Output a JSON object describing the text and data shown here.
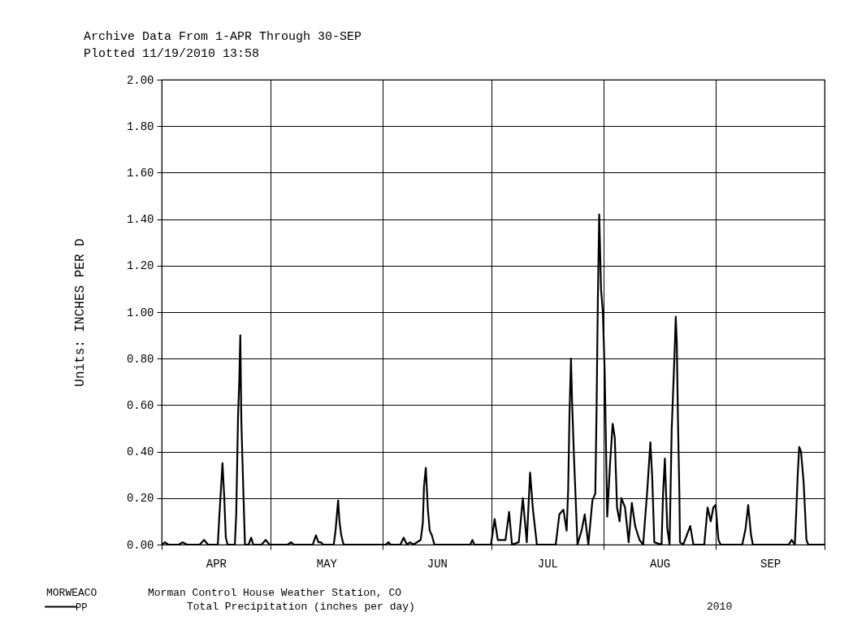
{
  "chart_data": {
    "type": "line",
    "title": "Archive Data From  1-APR Through 30-SEP",
    "subtitle": "Plotted 11/19/2010  13:58",
    "ylabel": "Units: INCHES PER D",
    "annotations": [
      "MORWEACO",
      "Morman Control House Weather Station, CO",
      "Total Precipitation (inches per day)",
      "2010"
    ],
    "x": [
      "2010-04-01T00:00",
      "2010-04-01T22:00",
      "2010-04-02T19:00",
      "2010-04-05T17:00",
      "2010-04-06T19:00",
      "2010-04-08T00:00",
      "2010-04-11T12:00",
      "2010-04-12T17:00",
      "2010-04-13T19:00",
      "2010-04-16T12:00",
      "2010-04-16T22:00",
      "2010-04-17T19:00",
      "2010-04-18T07:00",
      "2010-04-18T17:00",
      "2010-04-19T05:00",
      "2010-04-21T05:00",
      "2010-04-21T14:00",
      "2010-04-22T02:00",
      "2010-04-22T10:00",
      "2010-04-22T17:00",
      "2010-04-23T00:00",
      "2010-04-23T14:00",
      "2010-04-24T00:00",
      "2010-04-25T00:00",
      "2010-04-25T17:00",
      "2010-04-26T07:00",
      "2010-04-28T14:00",
      "2010-04-29T17:00",
      "2010-04-30T19:00",
      "2010-05-05T19:00",
      "2010-05-06T17:00",
      "2010-05-07T12:00",
      "2010-05-12T17:00",
      "2010-05-13T14:00",
      "2010-05-14T07:00",
      "2010-05-14T22:00",
      "2010-05-15T14:00",
      "2010-05-18T12:00",
      "2010-05-19T00:00",
      "2010-05-19T17:00",
      "2010-05-20T02:00",
      "2010-05-20T14:00",
      "2010-05-21T05:00",
      "2010-06-01T22:00",
      "2010-06-02T14:00",
      "2010-06-03T05:00",
      "2010-06-05T22:00",
      "2010-06-06T19:00",
      "2010-06-07T17:00",
      "2010-06-08T14:00",
      "2010-06-09T12:00",
      "2010-06-11T12:00",
      "2010-06-12T02:00",
      "2010-06-12T10:00",
      "2010-06-12T22:00",
      "2010-06-13T12:00",
      "2010-06-14T00:00",
      "2010-06-14T14:00",
      "2010-06-15T07:00",
      "2010-06-25T05:00",
      "2010-06-25T19:00",
      "2010-06-26T07:00",
      "2010-06-30T22:00",
      "2010-07-01T22:00",
      "2010-07-02T19:00",
      "2010-07-04T22:00",
      "2010-07-05T22:00",
      "2010-07-06T17:00",
      "2010-07-08T14:00",
      "2010-07-09T17:00",
      "2010-07-10T19:00",
      "2010-07-11T17:00",
      "2010-07-12T12:00",
      "2010-07-13T14:00",
      "2010-07-18T19:00",
      "2010-07-19T19:00",
      "2010-07-20T22:00",
      "2010-07-21T19:00",
      "2010-07-22T05:00",
      "2010-07-22T14:00",
      "2010-07-23T00:00",
      "2010-07-23T07:00",
      "2010-07-23T19:00",
      "2010-07-24T19:00",
      "2010-07-25T22:00",
      "2010-07-26T19:00",
      "2010-07-27T19:00",
      "2010-07-28T22:00",
      "2010-07-29T17:00",
      "2010-07-30T02:00",
      "2010-07-30T10:00",
      "2010-07-30T19:00",
      "2010-07-31T07:00",
      "2010-07-31T19:00",
      "2010-08-01T07:00",
      "2010-08-02T00:00",
      "2010-08-02T19:00",
      "2010-08-03T12:00",
      "2010-08-04T02:00",
      "2010-08-04T17:00",
      "2010-08-05T10:00",
      "2010-08-05T22:00",
      "2010-08-06T22:00",
      "2010-08-07T22:00",
      "2010-08-08T19:00",
      "2010-08-09T17:00",
      "2010-08-10T22:00",
      "2010-08-11T22:00",
      "2010-08-13T02:00",
      "2010-08-13T22:00",
      "2010-08-14T10:00",
      "2010-08-15T00:00",
      "2010-08-17T00:00",
      "2010-08-17T10:00",
      "2010-08-17T22:00",
      "2010-08-18T14:00",
      "2010-08-19T05:00",
      "2010-08-19T19:00",
      "2010-08-20T14:00",
      "2010-08-20T22:00",
      "2010-08-21T05:00",
      "2010-08-21T12:00",
      "2010-08-21T22:00",
      "2010-08-22T02:00",
      "2010-08-23T00:00",
      "2010-08-24T22:00",
      "2010-08-25T19:00",
      "2010-08-28T19:00",
      "2010-08-29T17:00",
      "2010-08-30T14:00",
      "2010-08-31T07:00",
      "2010-08-31T22:00",
      "2010-09-01T17:00",
      "2010-09-02T07:00",
      "2010-09-08T07:00",
      "2010-09-09T05:00",
      "2010-09-09T22:00",
      "2010-09-10T17:00",
      "2010-09-11T05:00",
      "2010-09-21T02:00",
      "2010-09-21T22:00",
      "2010-09-22T19:00",
      "2010-09-23T05:00",
      "2010-09-23T14:00",
      "2010-09-24T00:00",
      "2010-09-24T12:00",
      "2010-09-25T05:00",
      "2010-09-26T00:00",
      "2010-09-26T12:00",
      "2010-10-01T00:00"
    ],
    "series": [
      {
        "name": "PP",
        "color": "#000000",
        "values": [
          0,
          0.01,
          0,
          0,
          0.01,
          0,
          0,
          0.02,
          0,
          0,
          0.12,
          0.35,
          0.2,
          0.03,
          0,
          0,
          0.13,
          0.55,
          0.7,
          0.9,
          0.53,
          0.21,
          0,
          0,
          0.03,
          0,
          0,
          0.02,
          0,
          0,
          0.01,
          0,
          0,
          0.04,
          0.01,
          0.01,
          0,
          0,
          0.06,
          0.19,
          0.1,
          0.04,
          0,
          0,
          0.01,
          0,
          0,
          0.03,
          0,
          0.01,
          0,
          0.02,
          0.09,
          0.25,
          0.33,
          0.15,
          0.06,
          0.04,
          0,
          0,
          0.02,
          0,
          0,
          0.11,
          0.02,
          0.02,
          0.14,
          0,
          0.01,
          0.2,
          0.01,
          0.31,
          0.15,
          0,
          0,
          0.13,
          0.15,
          0.06,
          0.23,
          0.56,
          0.8,
          0.62,
          0.39,
          0,
          0.06,
          0.13,
          0,
          0.19,
          0.22,
          0.61,
          1.06,
          1.42,
          1.1,
          1.0,
          0.75,
          0.12,
          0.35,
          0.52,
          0.46,
          0.16,
          0.1,
          0.2,
          0.16,
          0.01,
          0.18,
          0.08,
          0.02,
          0,
          0.24,
          0.44,
          0.29,
          0.01,
          0,
          0.22,
          0.37,
          0.07,
          0,
          0.49,
          0.82,
          0.98,
          0.87,
          0.56,
          0.22,
          0.01,
          0,
          0.08,
          0,
          0,
          0.16,
          0.1,
          0.16,
          0.17,
          0.02,
          0,
          0,
          0.07,
          0.17,
          0.04,
          0,
          0,
          0.02,
          0,
          0.15,
          0.3,
          0.42,
          0.4,
          0.27,
          0.02,
          0,
          0
        ]
      }
    ],
    "xlim": [
      "2010-04-01T00:00",
      "2010-10-01T00:00"
    ],
    "xticks": [
      {
        "value": "2010-04-01T00:00",
        "label": null
      },
      {
        "value": "2010-04-16T00:00",
        "label": "APR"
      },
      {
        "value": "2010-05-01T00:00",
        "label": null
      },
      {
        "value": "2010-05-16T12:00",
        "label": "MAY"
      },
      {
        "value": "2010-06-01T00:00",
        "label": null
      },
      {
        "value": "2010-06-16T00:00",
        "label": "JUN"
      },
      {
        "value": "2010-07-01T00:00",
        "label": null
      },
      {
        "value": "2010-07-16T12:00",
        "label": "JUL"
      },
      {
        "value": "2010-08-01T00:00",
        "label": null
      },
      {
        "value": "2010-08-16T12:00",
        "label": "AUG"
      },
      {
        "value": "2010-09-01T00:00",
        "label": null
      },
      {
        "value": "2010-09-16T00:00",
        "label": "SEP"
      },
      {
        "value": "2010-10-01T00:00",
        "label": null
      }
    ],
    "ylim": [
      0,
      2
    ],
    "yticks": [
      {
        "value": 0,
        "label": "0.00"
      },
      {
        "value": 0.2,
        "label": "0.20"
      },
      {
        "value": 0.4,
        "label": "0.40"
      },
      {
        "value": 0.6,
        "label": "0.60"
      },
      {
        "value": 0.8,
        "label": "0.80"
      },
      {
        "value": 1,
        "label": "1.00"
      },
      {
        "value": 1.2,
        "label": "1.20"
      },
      {
        "value": 1.4,
        "label": "1.40"
      },
      {
        "value": 1.6,
        "label": "1.60"
      },
      {
        "value": 1.8,
        "label": "1.80"
      },
      {
        "value": 2,
        "label": "2.00"
      }
    ],
    "grid": true,
    "legend": "bottom left",
    "marker": "none",
    "line_style": "solid"
  }
}
